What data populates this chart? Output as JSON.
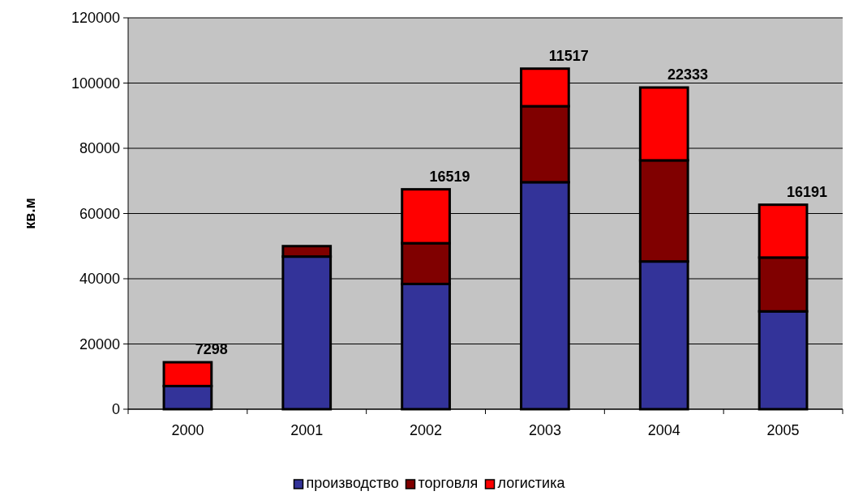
{
  "chart_data": {
    "type": "bar",
    "stacked": true,
    "ylabel": "кв.м",
    "categories": [
      "2000",
      "2001",
      "2002",
      "2003",
      "2004",
      "2005"
    ],
    "series": [
      {
        "name": "производство",
        "color": "#333399",
        "values": [
          7100,
          46800,
          38400,
          69600,
          45300,
          30000
        ]
      },
      {
        "name": "торговля",
        "color": "#800000",
        "values": [
          0,
          3200,
          12500,
          23300,
          31000,
          16500
        ]
      },
      {
        "name": "логистика",
        "color": "#ff0000",
        "values": [
          7298,
          null,
          16519,
          11517,
          22333,
          16191
        ],
        "value_labels": [
          "7298",
          null,
          "16519",
          "11517",
          "22333",
          "16191"
        ]
      }
    ],
    "ylim": [
      0,
      120000
    ],
    "yticks": [
      0,
      20000,
      40000,
      60000,
      80000,
      100000,
      120000
    ],
    "grid": "y",
    "legend": "bottom"
  }
}
